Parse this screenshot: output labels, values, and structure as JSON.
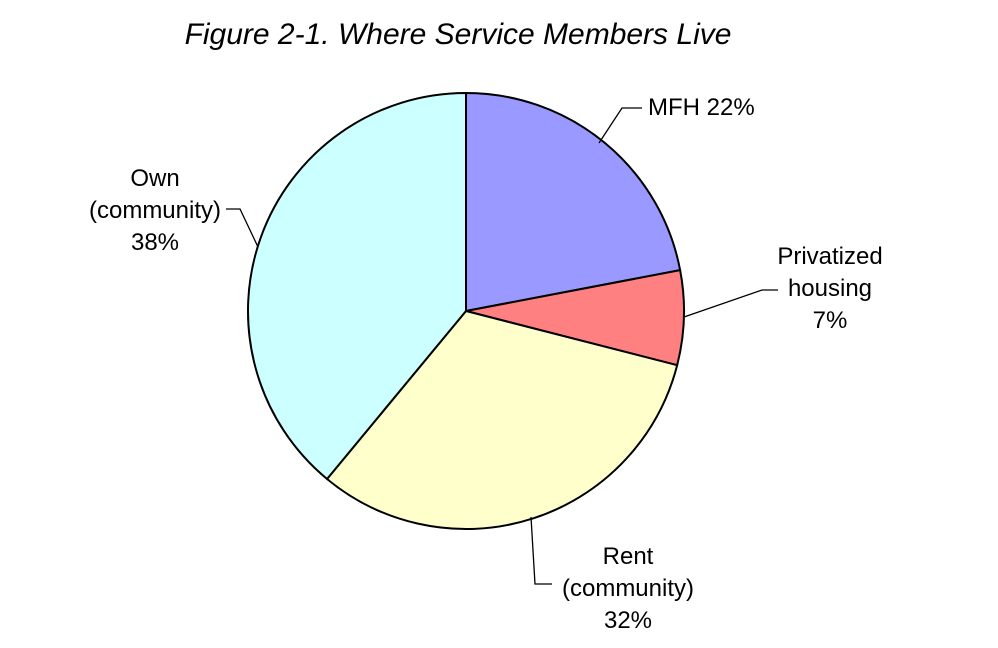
{
  "chart_data": {
    "type": "pie",
    "title": "Figure 2-1. Where Service Members Live",
    "background_color": "#FFFFFF",
    "outline_color": "#000000",
    "legend": "none (external labels with leader lines)",
    "order": "clockwise starting at 12 o'clock",
    "slices": [
      {
        "name": "MFH",
        "value_percent": 22,
        "color": "#9999FF",
        "label_lines": [
          "MFH 22%"
        ]
      },
      {
        "name": "Privatized housing",
        "value_percent": 7,
        "color": "#FF8080",
        "label_lines": [
          "Privatized",
          "housing",
          "7%"
        ]
      },
      {
        "name": "Rent (community)",
        "value_percent": 32,
        "color": "#FFFFCC",
        "label_lines": [
          "Rent",
          "(community)",
          "32%"
        ]
      },
      {
        "name": "Own (community)",
        "value_percent": 38,
        "color": "#CCFFFF",
        "label_lines": [
          "Own",
          "(community)",
          "38%"
        ]
      }
    ]
  }
}
